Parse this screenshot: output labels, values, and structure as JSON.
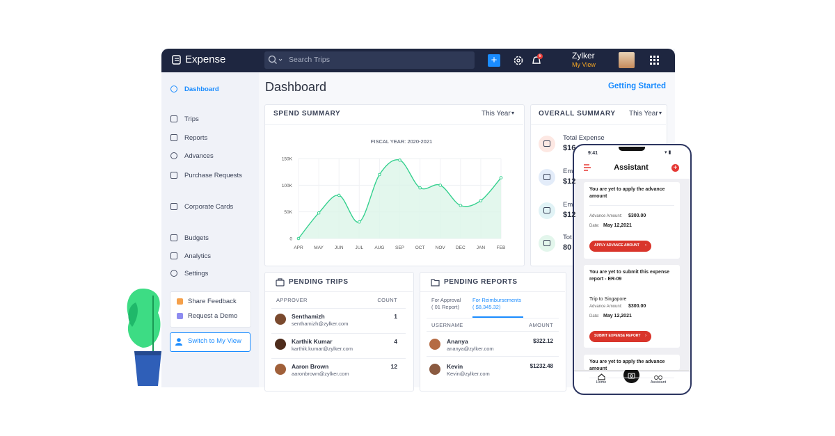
{
  "app": {
    "name": "Expense",
    "search_placeholder": "Search Trips",
    "notification_count": 6,
    "org": "Zylker",
    "view": "My View"
  },
  "sidebar": {
    "items": [
      "Dashboard",
      "Trips",
      "Reports",
      "Advances",
      "Purchase Requests",
      "Corporate Cards",
      "Budgets",
      "Analytics",
      "Settings"
    ],
    "links": [
      "Share Feedback",
      "Request a Demo"
    ],
    "switch": "Switch to My View"
  },
  "page": {
    "title": "Dashboard",
    "action": "Getting Started"
  },
  "spend_summary": {
    "title": "SPEND SUMMARY",
    "period": "This Year"
  },
  "chart_data": {
    "type": "line",
    "title": "FISCAL YEAR: 2020-2021",
    "categories": [
      "APR",
      "MAY",
      "JUN",
      "JUL",
      "AUG",
      "SEP",
      "OCT",
      "NOV",
      "DEC",
      "JAN",
      "FEB"
    ],
    "values": [
      0,
      48000,
      81000,
      31000,
      120000,
      147000,
      95000,
      100000,
      62000,
      71000,
      114000
    ],
    "color": "#34d08e",
    "ylim": [
      0,
      150000
    ],
    "yticks": [
      0,
      {
        "value": 50000,
        "label": "50K"
      },
      {
        "value": 100000,
        "label": "100K"
      },
      {
        "value": 150000,
        "label": "150K"
      }
    ],
    "grid": true
  },
  "overall_summary": {
    "title": "OVERALL SUMMARY",
    "period": "This Year",
    "items": [
      {
        "label": "Total Expense",
        "value": "$16"
      },
      {
        "label": "Em",
        "value": "$12"
      },
      {
        "label": "Em",
        "value": "$12"
      },
      {
        "label": "Tot",
        "value": "80"
      }
    ]
  },
  "pending_trips": {
    "title": "PENDING TRIPS",
    "columns": [
      "APPROVER",
      "COUNT"
    ],
    "rows": [
      {
        "name": "Senthamizh",
        "email": "senthamizh@zylker.com",
        "count": 1
      },
      {
        "name": "Karthik Kumar",
        "email": "karthik.kumar@zylker.com",
        "count": 4
      },
      {
        "name": "Aaron Brown",
        "email": "aaronbrown@zylker.com",
        "count": 12
      }
    ]
  },
  "pending_reports": {
    "title": "PENDING REPORTS",
    "tabs": [
      {
        "label": "For Approval",
        "sub": "( 01 Report)"
      },
      {
        "label": "For Reimbursements",
        "sub": "( $8,345.32)"
      }
    ],
    "columns": [
      "USERNAME",
      "AMOUNT"
    ],
    "rows": [
      {
        "name": "Ananya",
        "email": "ananya@zylker.com",
        "amount": "$322.12"
      },
      {
        "name": "Kevin",
        "email": "Kevin@zylker.com",
        "amount": "$1232.48"
      }
    ]
  },
  "phone": {
    "time": "9:41",
    "title": "Assistant",
    "cards": [
      {
        "text": [
          "You are yet to apply the advance",
          "amount"
        ],
        "fields": [
          {
            "label": "Advance Amount:",
            "value": "$300.00"
          },
          {
            "label": "Date:",
            "value": "May 12,2021"
          }
        ],
        "button": "APPLY ADVANCE AMOUNT"
      },
      {
        "text": [
          "You are yet to submit this expense",
          "report - ER-09"
        ],
        "detail": "Trip to Singapore",
        "fields": [
          {
            "label": "Advance Amount:",
            "value": "$300.00"
          },
          {
            "label": "Date:",
            "value": "May 12,2021"
          }
        ],
        "button": "SUBMIT EXPENSE REPORT"
      },
      {
        "text": [
          "You are yet to apply the advance",
          "amount"
        ]
      }
    ],
    "tabs": [
      "Home",
      "Assistant"
    ]
  }
}
